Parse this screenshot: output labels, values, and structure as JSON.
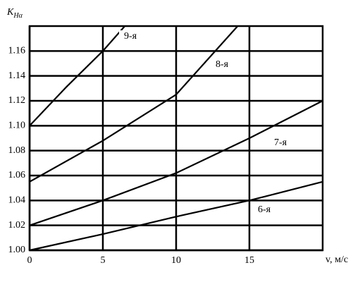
{
  "chart_data": {
    "type": "line",
    "y_label": "K",
    "y_label_sub": "Hα",
    "x_label": "v, м/с",
    "xlim": [
      0,
      20
    ],
    "ylim": [
      1.0,
      1.18
    ],
    "xticks": [
      0,
      5,
      10,
      15
    ],
    "yticks": [
      {
        "value": 1.0,
        "label": "1.00"
      },
      1.02,
      1.04,
      1.06,
      1.08,
      {
        "value": 1.1,
        "label": "1.10"
      },
      1.12,
      1.14,
      1.16
    ],
    "grid": true,
    "color": "#000000",
    "series": [
      {
        "name": "9-я",
        "x": [
          0,
          2.5,
          5,
          6.5
        ],
        "values": [
          1.1,
          1.131,
          1.16,
          1.18
        ]
      },
      {
        "name": "8-я",
        "x": [
          0,
          5,
          10,
          14.2
        ],
        "values": [
          1.055,
          1.088,
          1.125,
          1.18
        ]
      },
      {
        "name": "7-я",
        "x": [
          0,
          5,
          10,
          15,
          20
        ],
        "values": [
          1.02,
          1.04,
          1.062,
          1.09,
          1.12
        ]
      },
      {
        "name": "6-я",
        "x": [
          0,
          5,
          10,
          15,
          20
        ],
        "values": [
          1.0,
          1.013,
          1.027,
          1.04,
          1.055
        ]
      }
    ]
  }
}
